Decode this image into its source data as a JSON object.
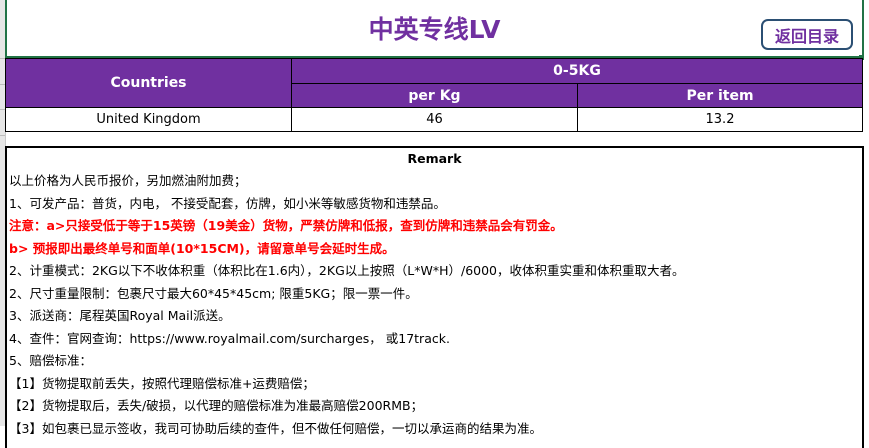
{
  "header": {
    "title": "中英专线LV",
    "back_button": "返回目录"
  },
  "table": {
    "col_countries": "Countries",
    "weight_band": "0-5KG",
    "col_per_kg": "per Kg",
    "col_per_item": "Per item",
    "rows": [
      {
        "country": "United Kingdom",
        "per_kg": "46",
        "per_item": "13.2"
      }
    ]
  },
  "remark": {
    "title": "Remark",
    "lines": [
      {
        "text": "以上价格为人民币报价，另加燃油附加费；",
        "highlight": false
      },
      {
        "text": "1、可发产品：普货，内电， 不接受配套，仿牌，如小米等敏感货物和违禁品。",
        "highlight": false
      },
      {
        "text": "注意：a>只接受低于等于15英镑（19美金）货物，严禁仿牌和低报，查到仿牌和违禁品会有罚金。",
        "highlight": true
      },
      {
        "text": "b> 预报即出最终单号和面单(10*15CM)，请留意单号会延时生成。",
        "highlight": true
      },
      {
        "text": "2、计重模式：2KG以下不收体积重（体积比在1.6内），2KG以上按照（L*W*H）/6000，收体积重实重和体积重取大者。",
        "highlight": false
      },
      {
        "text": "2、尺寸重量限制：包裹尺寸最大60*45*45cm; 限重5KG；限一票一件。",
        "highlight": false
      },
      {
        "text": "3、派送商：尾程英国Royal Mail派送。",
        "highlight": false
      },
      {
        "text": "4、查件：官网查询：https://www.royalmail.com/surcharges， 或17track.",
        "highlight": false
      },
      {
        "text": "5、赔偿标准：",
        "highlight": false
      },
      {
        "text": "【1】货物提取前丢失，按照代理赔偿标准+运费赔偿；",
        "highlight": false
      },
      {
        "text": "【2】货物提取后，丢失/破损，以代理的赔偿标准为准最高赔偿200RMB；",
        "highlight": false
      },
      {
        "text": "【3】如包裹已显示签收，我司可协助后续的查件，但不做任何赔偿，一切以承运商的结果为准。",
        "highlight": false
      }
    ]
  },
  "colors": {
    "accent": "#7030A0",
    "selection": "#217346",
    "alert": "#ff0000"
  }
}
